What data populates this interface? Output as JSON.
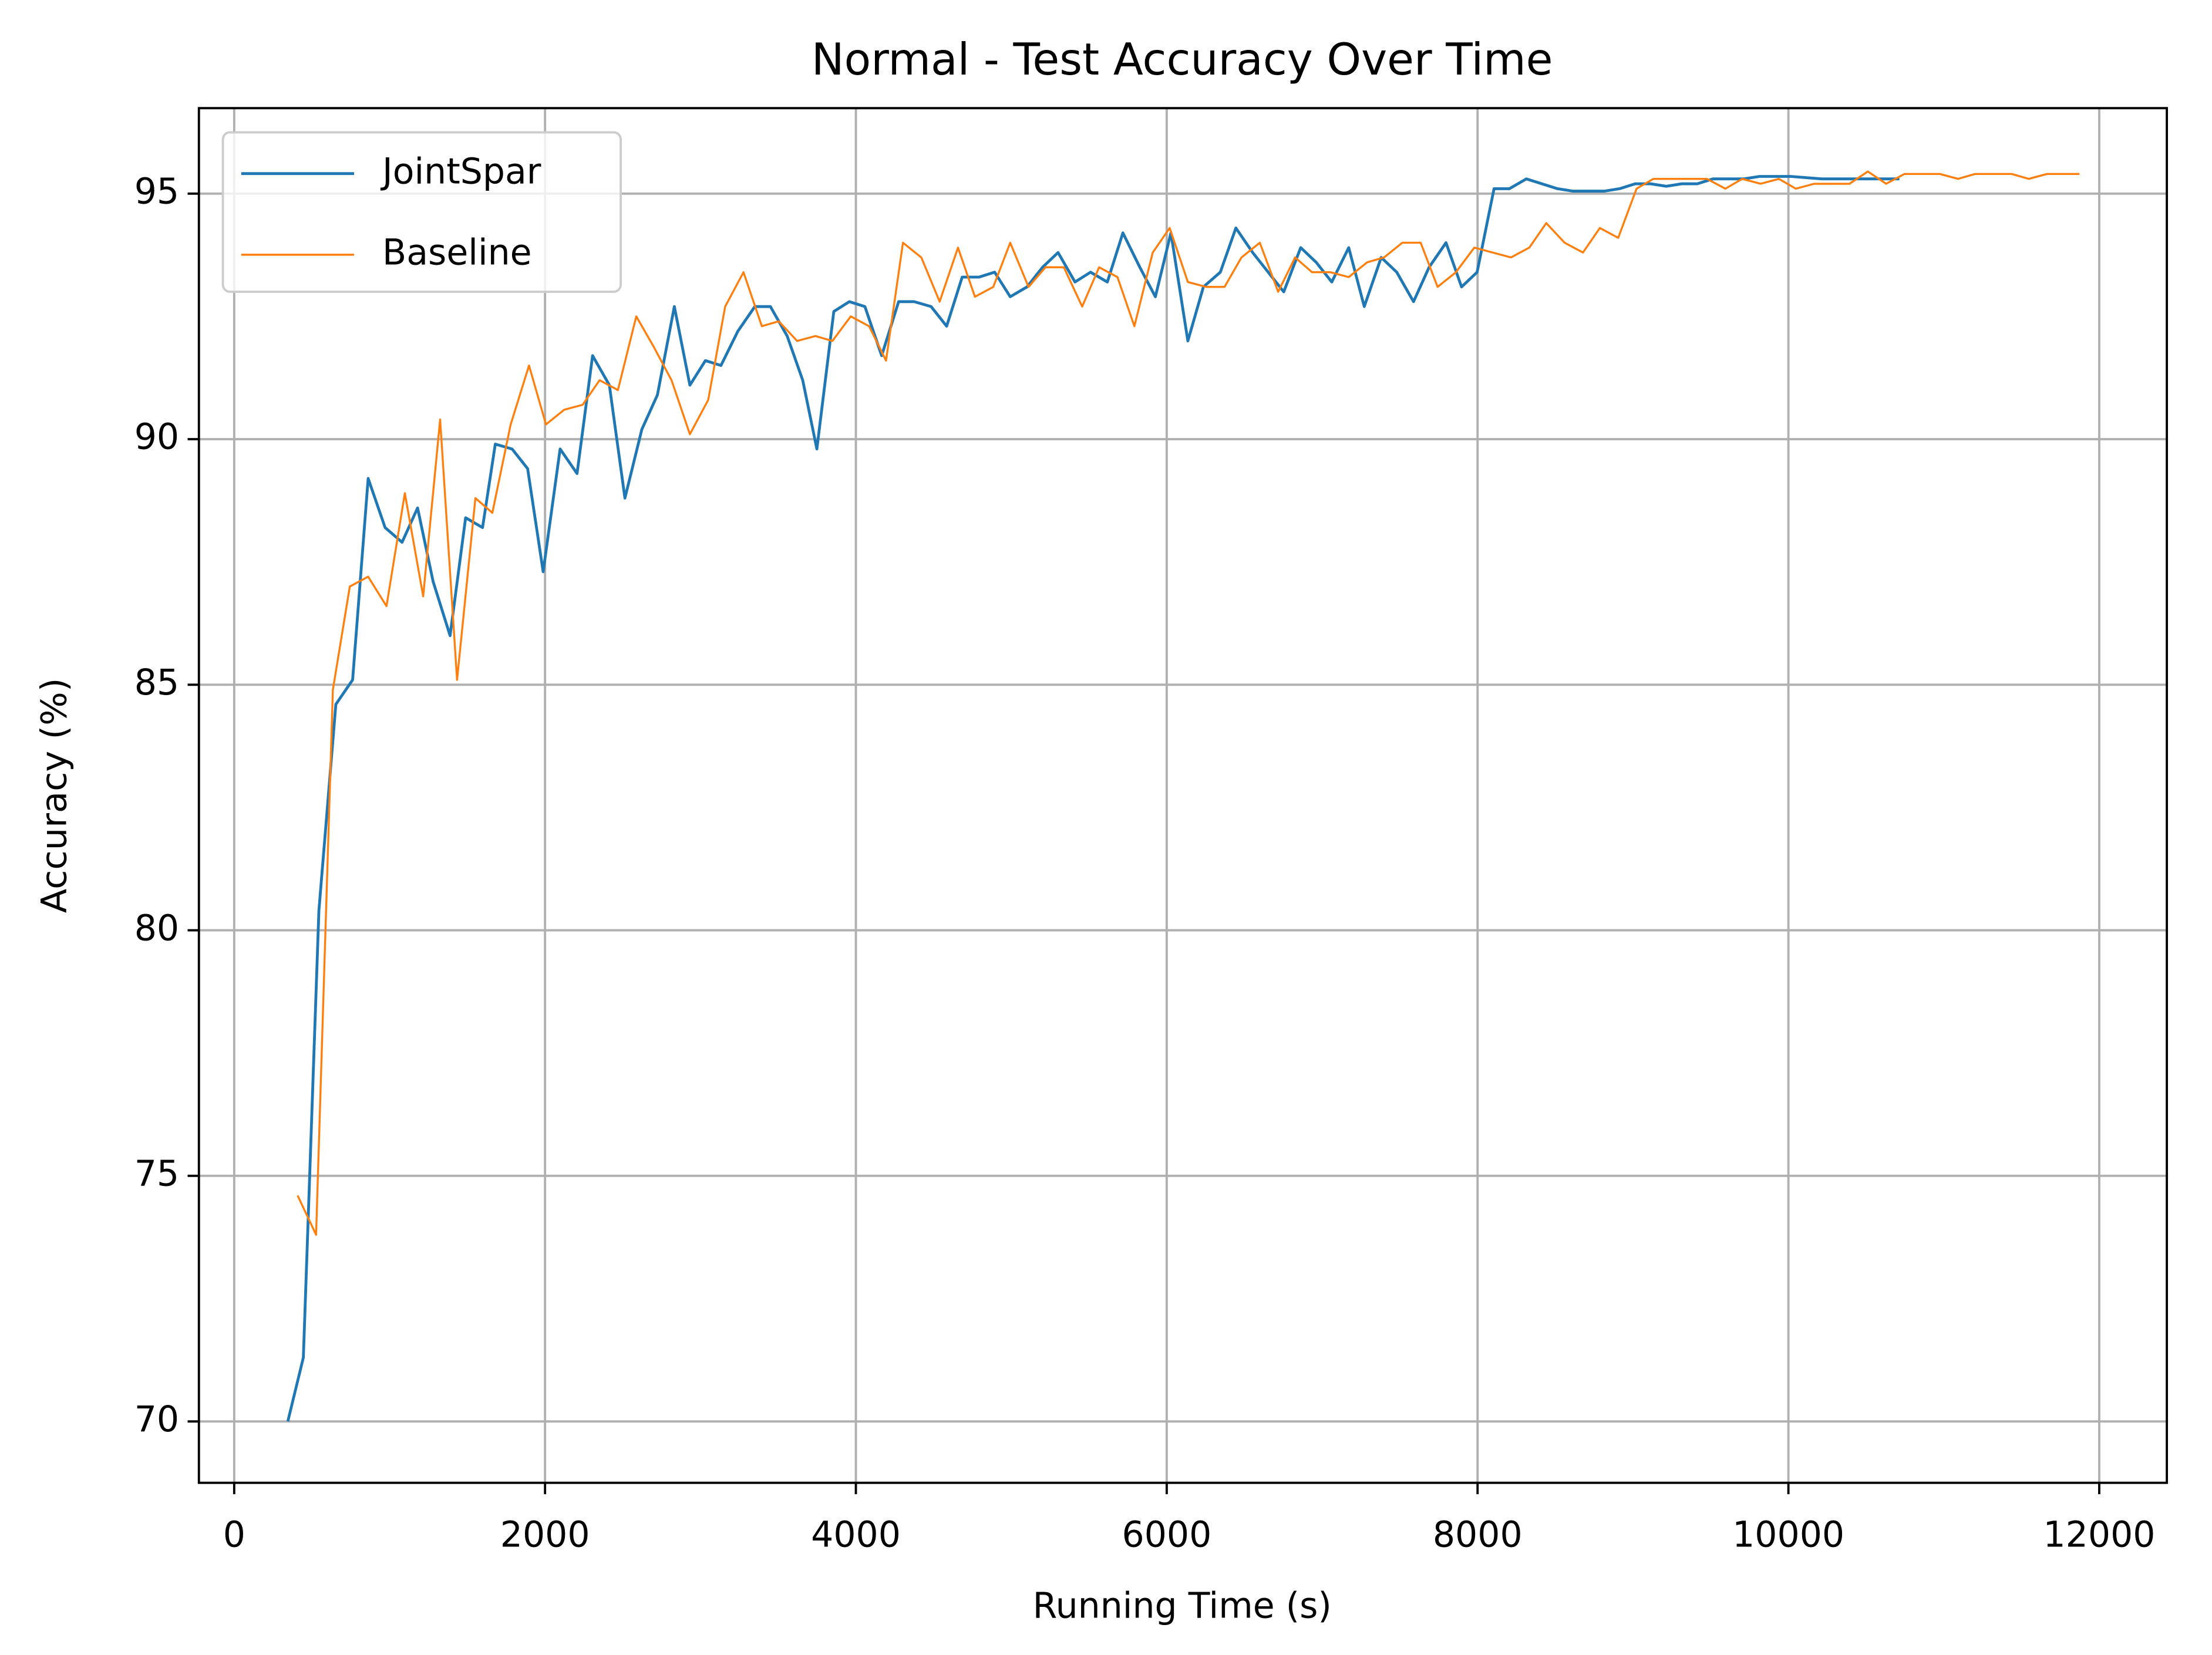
{
  "chart_data": {
    "type": "line",
    "title": "Normal - Test Accuracy Over Time",
    "x_label": "Running Time (s)",
    "y_label": "Accuracy (%)",
    "xlim": [
      -227,
      12435
    ],
    "ylim": [
      68.75,
      96.74
    ],
    "xticks": [
      0,
      2000,
      4000,
      6000,
      8000,
      10000,
      12000
    ],
    "yticks": [
      70,
      75,
      80,
      85,
      90,
      95
    ],
    "grid": true,
    "legend": "upper left",
    "series": [
      {
        "name": "JointSpar",
        "color": "#1f77b4",
        "width": 2,
        "x": [
          345,
          445,
          545,
          654,
          762,
          862,
          971,
          1080,
          1180,
          1280,
          1389,
          1489,
          1598,
          1680,
          1788,
          1888,
          1988,
          2097,
          2206,
          2306,
          2414,
          2514,
          2623,
          2723,
          2832,
          2932,
          3032,
          3132,
          3241,
          3350,
          3450,
          3558,
          3658,
          3749,
          3858,
          3958,
          4058,
          4166,
          4275,
          4375,
          4484,
          4584,
          4684,
          4793,
          4893,
          4993,
          5101,
          5201,
          5301,
          5410,
          5510,
          5618,
          5718,
          5827,
          5927,
          6027,
          6136,
          6236,
          6345,
          6445,
          6553,
          6653,
          6753,
          6862,
          6962,
          7062,
          7171,
          7271,
          7380,
          7480,
          7588,
          7688,
          7797,
          7897,
          7997,
          8106,
          8205,
          8314,
          8414,
          8514,
          8614,
          8714,
          8814,
          8914,
          9014,
          9114,
          9214,
          9314,
          9414,
          9514,
          9614,
          9714,
          9814,
          9914,
          10014,
          10214,
          10414,
          10514,
          10614,
          10714
        ],
        "values": [
          70.0,
          71.3,
          80.4,
          84.6,
          85.1,
          89.2,
          88.2,
          87.9,
          88.6,
          87.1,
          86.0,
          88.4,
          88.2,
          89.9,
          89.8,
          89.4,
          87.3,
          89.8,
          89.3,
          91.7,
          91.1,
          88.8,
          90.2,
          90.9,
          92.7,
          91.1,
          91.6,
          91.5,
          92.2,
          92.7,
          92.7,
          92.1,
          91.2,
          89.8,
          92.6,
          92.8,
          92.7,
          91.7,
          92.8,
          92.8,
          92.7,
          92.3,
          93.3,
          93.3,
          93.4,
          92.9,
          93.1,
          93.5,
          93.8,
          93.2,
          93.4,
          93.2,
          94.2,
          93.5,
          92.9,
          94.2,
          92.0,
          93.1,
          93.4,
          94.3,
          93.8,
          93.4,
          93.0,
          93.9,
          93.6,
          93.2,
          93.9,
          92.7,
          93.7,
          93.4,
          92.8,
          93.5,
          94.0,
          93.1,
          93.4,
          95.1,
          95.1,
          95.3,
          95.2,
          95.1,
          95.05,
          95.05,
          95.05,
          95.1,
          95.2,
          95.2,
          95.15,
          95.2,
          95.2,
          95.3,
          95.3,
          95.3,
          95.35,
          95.35,
          95.35,
          95.3,
          95.3,
          95.3,
          95.3,
          95.3
        ]
      },
      {
        "name": "Baseline",
        "color": "#ff7f0e",
        "width": 1.4,
        "x": [
          408,
          527,
          635,
          744,
          862,
          980,
          1098,
          1216,
          1325,
          1434,
          1552,
          1661,
          1779,
          1897,
          2006,
          2124,
          2242,
          2351,
          2469,
          2587,
          2696,
          2814,
          2932,
          3050,
          3159,
          3277,
          3395,
          3504,
          3622,
          3740,
          3849,
          3967,
          4085,
          4194,
          4303,
          4421,
          4539,
          4657,
          4766,
          4884,
          4993,
          5111,
          5220,
          5338,
          5456,
          5565,
          5683,
          5792,
          5910,
          6019,
          6136,
          6254,
          6372,
          6481,
          6599,
          6717,
          6826,
          6935,
          7053,
          7171,
          7289,
          7398,
          7516,
          7634,
          7743,
          7861,
          7979,
          8097,
          8215,
          8333,
          8442,
          8560,
          8678,
          8787,
          8905,
          9023,
          9131,
          9249,
          9358,
          9476,
          9594,
          9703,
          9821,
          9939,
          10048,
          10166,
          10284,
          10393,
          10511,
          10629,
          10747,
          10856,
          10974,
          11092,
          11201,
          11319,
          11437,
          11546,
          11664,
          11782,
          11873
        ],
        "values": [
          74.6,
          73.8,
          84.9,
          87.0,
          87.2,
          86.6,
          88.9,
          86.8,
          90.4,
          85.1,
          88.8,
          88.5,
          90.3,
          91.5,
          90.3,
          90.6,
          90.7,
          91.2,
          91.0,
          92.5,
          91.9,
          91.2,
          90.1,
          90.8,
          92.7,
          93.4,
          92.3,
          92.4,
          92.0,
          92.1,
          92.0,
          92.5,
          92.3,
          91.6,
          94.0,
          93.7,
          92.8,
          93.9,
          92.9,
          93.1,
          94.0,
          93.1,
          93.5,
          93.5,
          92.7,
          93.5,
          93.3,
          92.3,
          93.8,
          94.3,
          93.2,
          93.1,
          93.1,
          93.7,
          94.0,
          93.0,
          93.7,
          93.4,
          93.4,
          93.3,
          93.6,
          93.7,
          94.0,
          94.0,
          93.1,
          93.4,
          93.9,
          93.8,
          93.7,
          93.9,
          94.4,
          94.0,
          93.8,
          94.3,
          94.1,
          95.1,
          95.3,
          95.3,
          95.3,
          95.3,
          95.1,
          95.3,
          95.2,
          95.3,
          95.1,
          95.2,
          95.2,
          95.2,
          95.45,
          95.2,
          95.4,
          95.4,
          95.4,
          95.3,
          95.4,
          95.4,
          95.4,
          95.3,
          95.4,
          95.4,
          95.4
        ]
      }
    ]
  }
}
